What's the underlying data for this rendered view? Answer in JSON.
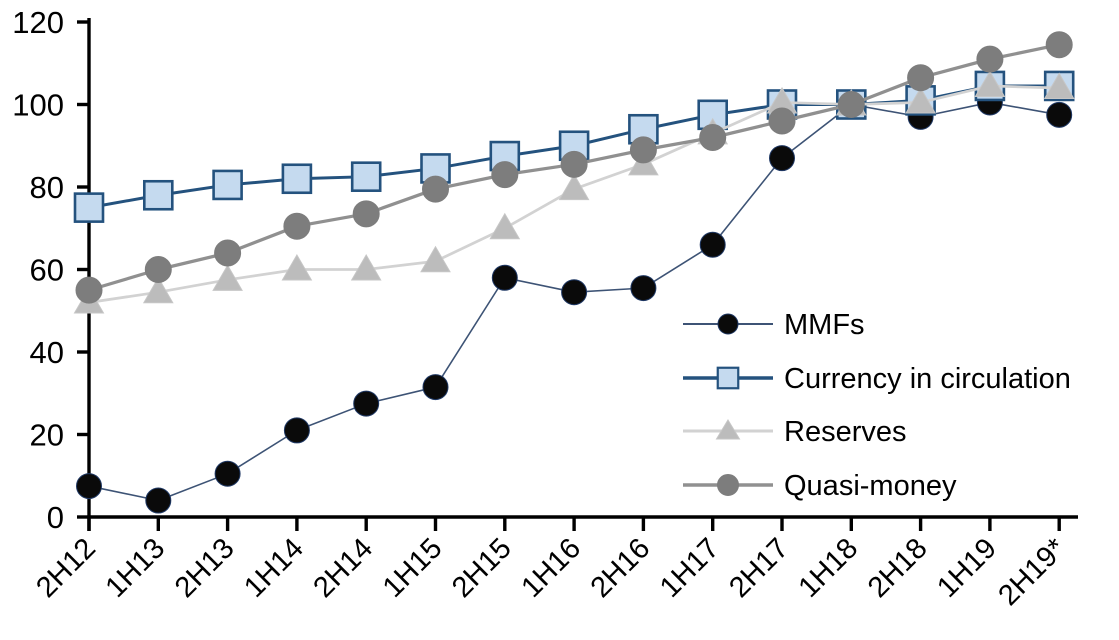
{
  "chart_data": {
    "type": "line",
    "title": "",
    "xlabel": "",
    "ylabel": "",
    "ylim": [
      0,
      120
    ],
    "yticks": [
      0,
      20,
      40,
      60,
      80,
      100,
      120
    ],
    "grid": false,
    "legend_position": "inside-right",
    "axis_color": "#000000",
    "categories": [
      "2H12",
      "1H13",
      "2H13",
      "1H14",
      "2H14",
      "1H15",
      "2H15",
      "1H16",
      "2H16",
      "1H17",
      "2H17",
      "1H18",
      "2H18",
      "1H19",
      "2H19*"
    ],
    "series": [
      {
        "name": "MMFs",
        "marker": "circle",
        "line_color": "#3d5375",
        "line_width": 1.6,
        "marker_fill": "#0a0a0a",
        "marker_stroke": "#1f3864",
        "values": [
          7.5,
          4,
          10.5,
          21,
          27.5,
          31.5,
          58,
          54.5,
          55.5,
          66,
          87,
          100,
          97,
          100.5,
          97.5
        ]
      },
      {
        "name": "Currency in circulation",
        "marker": "square",
        "line_color": "#24527e",
        "line_width": 3,
        "marker_fill": "#c5daef",
        "marker_stroke": "#24527e",
        "values": [
          75,
          78,
          80.5,
          82,
          82.5,
          84.5,
          87.5,
          90,
          94,
          97.5,
          100,
          100,
          101,
          104.5,
          104.5
        ]
      },
      {
        "name": "Reserves",
        "marker": "triangle",
        "line_color": "#d2d2d2",
        "line_width": 2.75,
        "marker_fill": "#bcbcbc",
        "marker_stroke": "#c6c6c6",
        "values": [
          52,
          54.5,
          57.5,
          60,
          60,
          62,
          70,
          79.5,
          85.5,
          93,
          100.5,
          100,
          100.5,
          104.5,
          104
        ]
      },
      {
        "name": "Quasi-money",
        "marker": "circle",
        "line_color": "#909090",
        "line_width": 3.25,
        "marker_fill": "#7d7d7d",
        "marker_stroke": "#7d7d7d",
        "values": [
          55,
          60,
          64,
          70.5,
          73.5,
          79.5,
          83,
          85.5,
          89,
          92,
          96,
          100,
          106.5,
          111,
          114.5
        ]
      }
    ]
  }
}
